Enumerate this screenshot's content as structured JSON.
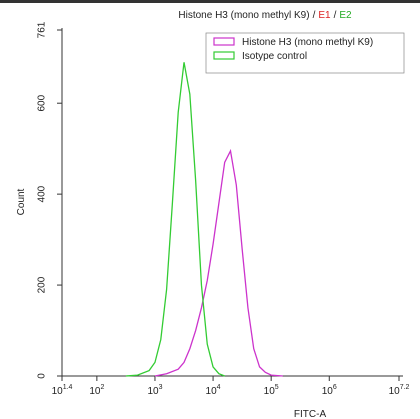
{
  "chart_data": {
    "type": "line",
    "title_parts": [
      {
        "text": "Histone H3 (mono methyl K9)",
        "color": "#222222"
      },
      {
        "text": "/",
        "color": "#222222"
      },
      {
        "text": "E1",
        "color": "#dd2222"
      },
      {
        "text": "/",
        "color": "#222222"
      },
      {
        "text": "E2",
        "color": "#22aa22"
      }
    ],
    "x_label": "FITC-A",
    "y_label": "Count",
    "log_x": true,
    "xlim": [
      25.12,
      15848932
    ],
    "xticks": [
      {
        "value": 25.12,
        "label": "10",
        "sup": "1.4"
      },
      {
        "value": 100,
        "label": "10",
        "sup": "2"
      },
      {
        "value": 1000,
        "label": "10",
        "sup": "3"
      },
      {
        "value": 10000,
        "label": "10",
        "sup": "4"
      },
      {
        "value": 100000,
        "label": "10",
        "sup": "5"
      },
      {
        "value": 1000000,
        "label": "10",
        "sup": "6"
      },
      {
        "value": 15848932,
        "label": "10",
        "sup": "7.2"
      }
    ],
    "ylim": [
      0,
      761
    ],
    "yticks": [
      0,
      200,
      400,
      600,
      761
    ],
    "legend": "top-right",
    "series": [
      {
        "name": "Histone H3 (mono methyl K9)",
        "color": "#cc33cc",
        "x": [
          1000,
          1585,
          2512,
          3162,
          3981,
          5012,
          6310,
          7943,
          10000,
          12589,
          15849,
          19953,
          25119,
          31623,
          39811,
          50119,
          63096,
          79433,
          100000,
          158489
        ],
        "values": [
          0,
          5,
          15,
          30,
          60,
          100,
          150,
          210,
          290,
          380,
          470,
          495,
          420,
          280,
          150,
          60,
          20,
          8,
          2,
          0
        ]
      },
      {
        "name": "Isotype control",
        "color": "#33cc33",
        "x": [
          316,
          501,
          794,
          1000,
          1259,
          1585,
          1995,
          2512,
          3162,
          3981,
          5012,
          6310,
          7943,
          10000,
          12589,
          15849
        ],
        "values": [
          0,
          2,
          12,
          30,
          80,
          190,
          380,
          580,
          690,
          620,
          430,
          200,
          70,
          20,
          5,
          0
        ]
      }
    ]
  }
}
